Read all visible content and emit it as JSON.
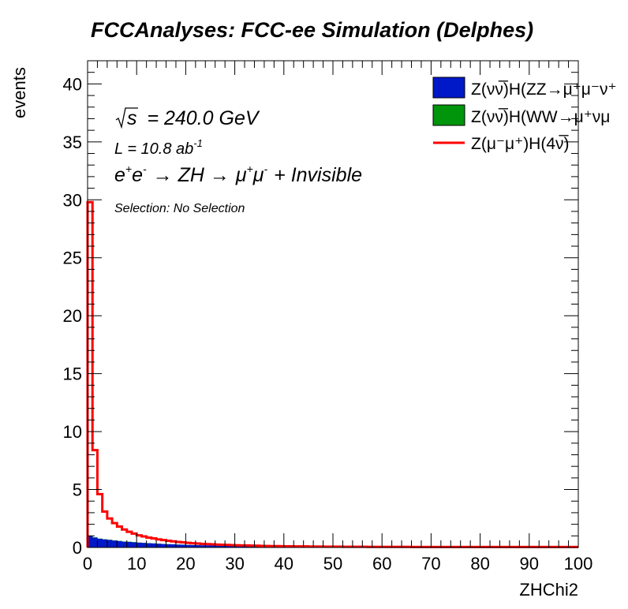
{
  "chart_data": {
    "type": "bar",
    "title": "FCCAnalyses: FCC-ee Simulation (Delphes)",
    "xlabel": "ZHChi2",
    "ylabel": "events",
    "xlim": [
      0,
      100
    ],
    "ylim": [
      0,
      42
    ],
    "x_ticks": [
      0,
      10,
      20,
      30,
      40,
      50,
      60,
      70,
      80,
      90,
      100
    ],
    "y_ticks": [
      0,
      5,
      10,
      15,
      20,
      25,
      30,
      35,
      40
    ],
    "bin_width": 1,
    "annotations": {
      "sqrt_s_symbol": "s",
      "energy": "= 240.0 GeV",
      "lumi_prefix": "L = 10.8 ab",
      "lumi_exp": "-1",
      "process_e": "e",
      "process_arrow1": "→ ZH →",
      "process_mu": "μ",
      "process_tail": "+ Invisible",
      "selection": "Selection: No Selection"
    },
    "legend": {
      "placement": "top-right",
      "entries": [
        {
          "label": "Z(νν̅)H(ZZ→μ⁺μ⁻ν⁺",
          "color": "#0019c8",
          "kind": "fill"
        },
        {
          "label": "Z(νν̅)H(WW→μ⁺νμ",
          "color": "#00950b",
          "kind": "fill"
        },
        {
          "label": "Z(μ⁻μ⁺)H(4ν̅)",
          "color": "#ff0000",
          "kind": "line"
        }
      ]
    },
    "series": [
      {
        "name": "Z(νν̅)H(ZZ→μ⁺μ⁻ν⁺",
        "style": "stacked-fill",
        "color": "#0019c8",
        "values": [
          1.0,
          0.85,
          0.75,
          0.7,
          0.65,
          0.6,
          0.55,
          0.5,
          0.48,
          0.45,
          0.42,
          0.4,
          0.37,
          0.35,
          0.33,
          0.3,
          0.28,
          0.27,
          0.25,
          0.24,
          0.22,
          0.21,
          0.2,
          0.19,
          0.18,
          0.17,
          0.16,
          0.15,
          0.15,
          0.14,
          0.13,
          0.13,
          0.12,
          0.12,
          0.11,
          0.11,
          0.1,
          0.1,
          0.1,
          0.09,
          0.09,
          0.09,
          0.09,
          0.08,
          0.08,
          0.08,
          0.08,
          0.08,
          0.07,
          0.07,
          0.07,
          0.07,
          0.07,
          0.07,
          0.07,
          0.06,
          0.06,
          0.06,
          0.06,
          0.06,
          0.06,
          0.06,
          0.06,
          0.06,
          0.06,
          0.05,
          0.05,
          0.05,
          0.05,
          0.05,
          0.05,
          0.05,
          0.05,
          0.05,
          0.05,
          0.05,
          0.05,
          0.05,
          0.05,
          0.05,
          0.05,
          0.05,
          0.05,
          0.05,
          0.05,
          0.05,
          0.05,
          0.05,
          0.05,
          0.05,
          0.05,
          0.05,
          0.05,
          0.05,
          0.05,
          0.05,
          0.05,
          0.05,
          0.05,
          0.05
        ]
      },
      {
        "name": "Z(νν̅)H(WW→μ⁺νμ",
        "style": "stacked-fill",
        "color": "#00950b",
        "values": [
          0.03,
          0.03,
          0.02,
          0.02,
          0.02,
          0.02,
          0.02,
          0.02,
          0.02,
          0.02,
          0.01,
          0.01,
          0.01,
          0.01,
          0.01,
          0.01,
          0.01,
          0.01,
          0.01,
          0.01,
          0.01,
          0.01,
          0.01,
          0.01,
          0.01,
          0.01,
          0.01,
          0.01,
          0.01,
          0.01,
          0.01,
          0.01,
          0.01,
          0.01,
          0.01,
          0.01,
          0.01,
          0.01,
          0.01,
          0.01,
          0.01,
          0.01,
          0.01,
          0.01,
          0.01,
          0.01,
          0.01,
          0.01,
          0.01,
          0.01,
          0.01,
          0.01,
          0.01,
          0.01,
          0.01,
          0.01,
          0.01,
          0.01,
          0.01,
          0.01,
          0.01,
          0.01,
          0.01,
          0.01,
          0.01,
          0.01,
          0.01,
          0.01,
          0.01,
          0.01,
          0.01,
          0.01,
          0.01,
          0.01,
          0.01,
          0.01,
          0.01,
          0.01,
          0.01,
          0.01,
          0.01,
          0.01,
          0.01,
          0.01,
          0.01,
          0.01,
          0.01,
          0.01,
          0.01,
          0.01,
          0.01,
          0.01,
          0.01,
          0.01,
          0.01,
          0.01,
          0.01,
          0.01,
          0.01,
          0.01
        ]
      },
      {
        "name": "Z(μ⁻μ⁺)H(4ν̅)",
        "style": "step-line",
        "color": "#ff0000",
        "values": [
          29.8,
          8.4,
          4.6,
          3.1,
          2.5,
          2.1,
          1.8,
          1.55,
          1.35,
          1.2,
          1.05,
          0.95,
          0.85,
          0.78,
          0.7,
          0.64,
          0.58,
          0.53,
          0.48,
          0.44,
          0.4,
          0.37,
          0.34,
          0.31,
          0.29,
          0.27,
          0.25,
          0.23,
          0.22,
          0.2,
          0.19,
          0.18,
          0.17,
          0.16,
          0.15,
          0.14,
          0.13,
          0.12,
          0.12,
          0.11,
          0.1,
          0.1,
          0.09,
          0.09,
          0.09,
          0.08,
          0.08,
          0.08,
          0.07,
          0.07,
          0.07,
          0.07,
          0.06,
          0.06,
          0.06,
          0.06,
          0.06,
          0.05,
          0.05,
          0.05,
          0.05,
          0.05,
          0.05,
          0.05,
          0.05,
          0.05,
          0.04,
          0.04,
          0.04,
          0.04,
          0.04,
          0.04,
          0.04,
          0.04,
          0.04,
          0.04,
          0.04,
          0.04,
          0.04,
          0.04,
          0.04,
          0.04,
          0.04,
          0.04,
          0.04,
          0.04,
          0.04,
          0.04,
          0.04,
          0.04,
          0.04,
          0.04,
          0.04,
          0.04,
          0.04,
          0.04,
          0.04,
          0.04,
          0.04,
          0.04
        ]
      }
    ]
  }
}
